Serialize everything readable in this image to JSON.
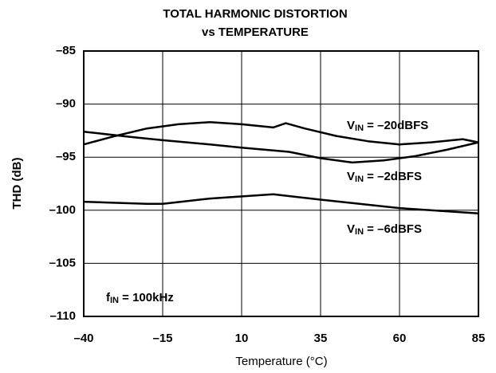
{
  "chart_data": {
    "type": "line",
    "title": [
      "TOTAL HARMONIC DISTORTION",
      "vs TEMPERATURE"
    ],
    "xlabel": "Temperature (°C)",
    "ylabel": "THD (dB)",
    "xlim": [
      -40,
      85
    ],
    "ylim": [
      -110,
      -85
    ],
    "xticks": [
      {
        "value": -40,
        "label": "–40"
      },
      {
        "value": -15,
        "label": "–15"
      },
      10,
      35,
      60,
      85
    ],
    "yticks": [
      {
        "value": -85,
        "label": "–85"
      },
      {
        "value": -90,
        "label": "–90"
      },
      {
        "value": -95,
        "label": "–95"
      },
      {
        "value": -100,
        "label": "–100"
      },
      {
        "value": -105,
        "label": "–105"
      },
      {
        "value": -110,
        "label": "–110"
      }
    ],
    "grid": true,
    "series": [
      {
        "name": "VIN = –20dBFS",
        "color": "#000000",
        "x": [
          -40,
          -30,
          -20,
          -10,
          0,
          10,
          20,
          24,
          30,
          40,
          50,
          60,
          70,
          80,
          85
        ],
        "values": [
          -93.8,
          -93.0,
          -92.3,
          -91.9,
          -91.7,
          -91.9,
          -92.2,
          -91.8,
          -92.3,
          -93.0,
          -93.5,
          -93.8,
          -93.6,
          -93.3,
          -93.6
        ]
      },
      {
        "name": "VIN = –2dBFS",
        "color": "#000000",
        "x": [
          -40,
          -25,
          -15,
          0,
          10,
          25,
          35,
          45,
          55,
          65,
          75,
          85
        ],
        "values": [
          -92.6,
          -93.1,
          -93.4,
          -93.8,
          -94.1,
          -94.5,
          -95.1,
          -95.5,
          -95.3,
          -94.9,
          -94.3,
          -93.6
        ]
      },
      {
        "name": "VIN = –6dBFS",
        "color": "#000000",
        "x": [
          -40,
          -20,
          -15,
          0,
          20,
          35,
          60,
          85
        ],
        "values": [
          -99.2,
          -99.4,
          -99.4,
          -98.9,
          -98.5,
          -99.0,
          -99.8,
          -100.3
        ]
      }
    ],
    "annotation": "fIN = 100kHz"
  }
}
